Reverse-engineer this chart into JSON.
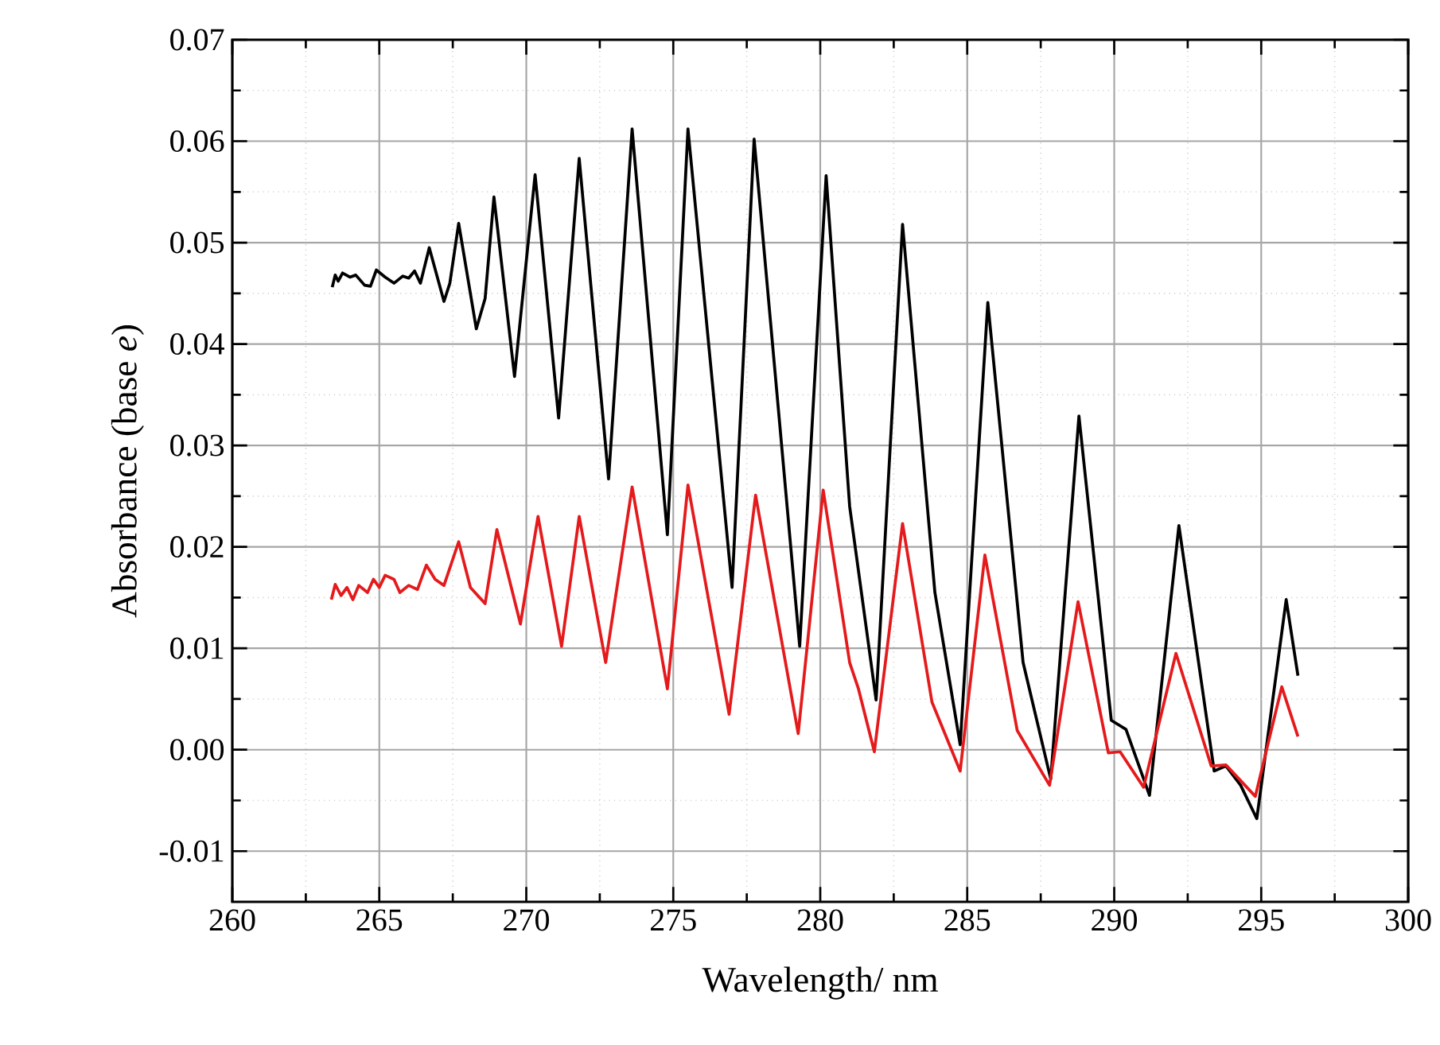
{
  "chart_data": {
    "type": "line",
    "xlabel": "Wavelength/ nm",
    "ylabel": "Absorbance (base *e*)",
    "xlim": [
      260,
      300
    ],
    "xticks": [
      260,
      265,
      270,
      275,
      280,
      285,
      290,
      295,
      300
    ],
    "ylim": [
      -0.015,
      0.07
    ],
    "yticks": [
      {
        "value": -0.01,
        "label": "-0.01"
      },
      {
        "value": 0,
        "label": "0.00"
      },
      {
        "value": 0.01,
        "label": "0.01"
      },
      {
        "value": 0.02,
        "label": "0.02"
      },
      {
        "value": 0.03,
        "label": "0.03"
      },
      {
        "value": 0.04,
        "label": "0.04"
      },
      {
        "value": 0.05,
        "label": "0.05"
      },
      {
        "value": 0.06,
        "label": "0.06"
      },
      {
        "value": 0.07,
        "label": "0.07"
      }
    ],
    "grid": true,
    "series": [
      {
        "color": "#000000",
        "x": [
          263.4,
          263.5,
          263.6,
          263.75,
          264.0,
          264.2,
          264.5,
          264.7,
          264.9,
          265.2,
          265.5,
          265.8,
          266.0,
          266.2,
          266.4,
          266.7,
          267.2,
          267.4,
          267.7,
          268.3,
          268.6,
          268.9,
          269.6,
          270.3,
          271.1,
          271.8,
          272.8,
          273.6,
          274.8,
          275.5,
          277.0,
          277.75,
          279.3,
          280.2,
          281.0,
          281.9,
          282.8,
          283.9,
          284.76,
          285.7,
          286.9,
          287.84,
          288.8,
          289.9,
          290.4,
          291.2,
          292.2,
          293.4,
          293.8,
          294.3,
          294.85,
          295.85,
          296.25
        ],
        "values": [
          0.0456,
          0.0468,
          0.0462,
          0.047,
          0.0466,
          0.0468,
          0.0458,
          0.0457,
          0.0473,
          0.0466,
          0.046,
          0.0467,
          0.0465,
          0.0472,
          0.046,
          0.0495,
          0.0442,
          0.046,
          0.0519,
          0.0415,
          0.0445,
          0.0545,
          0.0368,
          0.0567,
          0.0327,
          0.0583,
          0.0267,
          0.0612,
          0.0212,
          0.0612,
          0.016,
          0.0602,
          0.0102,
          0.0566,
          0.024,
          0.0049,
          0.0518,
          0.0155,
          0.0005,
          0.0441,
          0.0086,
          -0.0029,
          0.0329,
          0.0029,
          0.002,
          -0.0045,
          0.0221,
          -0.0021,
          -0.0016,
          -0.0035,
          -0.0068,
          0.0148,
          0.0073
        ]
      },
      {
        "color": "#e41a1c",
        "x": [
          263.37,
          263.5,
          263.7,
          263.9,
          264.1,
          264.3,
          264.6,
          264.8,
          265.0,
          265.2,
          265.5,
          265.7,
          266.0,
          266.3,
          266.6,
          266.9,
          267.2,
          267.7,
          268.1,
          268.6,
          269.0,
          269.8,
          270.4,
          271.2,
          271.8,
          272.7,
          273.6,
          274.8,
          275.5,
          276.9,
          277.8,
          279.25,
          280.1,
          281.0,
          281.3,
          281.84,
          282.8,
          283.8,
          284.76,
          285.6,
          286.7,
          287.8,
          288.77,
          289.8,
          290.2,
          291.0,
          292.1,
          293.3,
          293.8,
          294.8,
          295.7,
          296.25
        ],
        "values": [
          0.0148,
          0.0163,
          0.0152,
          0.016,
          0.0148,
          0.0162,
          0.0155,
          0.0168,
          0.016,
          0.0172,
          0.0168,
          0.0155,
          0.0162,
          0.0158,
          0.0182,
          0.0168,
          0.0162,
          0.0205,
          0.016,
          0.0144,
          0.0217,
          0.0124,
          0.023,
          0.0102,
          0.023,
          0.0086,
          0.0259,
          0.006,
          0.0261,
          0.0035,
          0.0251,
          0.0016,
          0.0256,
          0.0086,
          0.006,
          -0.0002,
          0.0223,
          0.0047,
          -0.0021,
          0.0192,
          0.0019,
          -0.0035,
          0.0146,
          -0.0003,
          -0.0002,
          -0.0037,
          0.0095,
          -0.0016,
          -0.0015,
          -0.0046,
          0.0062,
          0.0013
        ]
      }
    ]
  }
}
